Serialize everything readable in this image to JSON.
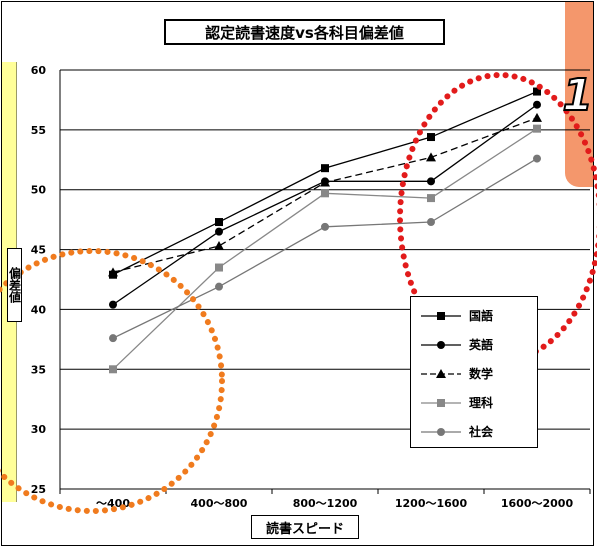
{
  "callout_number": "1",
  "chart_data": {
    "type": "line",
    "title": "認定読書速度vs各科目偏差値",
    "xlabel": "読書スピード",
    "ylabel": "偏差値",
    "categories": [
      "～400",
      "400～800",
      "800～1200",
      "1200～1600",
      "1600～2000"
    ],
    "ylim": [
      25,
      60
    ],
    "yticks": [
      25,
      30,
      35,
      40,
      45,
      50,
      55,
      60
    ],
    "grid": true,
    "legend_position": "lower-right",
    "series": [
      {
        "name": "国語",
        "values": [
          42.9,
          47.3,
          51.8,
          54.4,
          58.2
        ],
        "marker": "square",
        "dash": "solid",
        "color": "#000000"
      },
      {
        "name": "英語",
        "values": [
          40.4,
          46.5,
          50.7,
          50.7,
          57.1
        ],
        "marker": "circle",
        "dash": "solid",
        "color": "#000000"
      },
      {
        "name": "数学",
        "values": [
          43.1,
          45.3,
          50.6,
          52.7,
          56.0
        ],
        "marker": "triangle",
        "dash": "dashed",
        "color": "#000000"
      },
      {
        "name": "理科",
        "values": [
          35.0,
          43.5,
          49.7,
          49.3,
          55.1
        ],
        "marker": "square",
        "dash": "solid",
        "color": "#888888"
      },
      {
        "name": "社会",
        "values": [
          37.6,
          41.9,
          46.9,
          47.3,
          52.6
        ],
        "marker": "circle",
        "dash": "solid",
        "color": "#777777"
      }
    ]
  }
}
